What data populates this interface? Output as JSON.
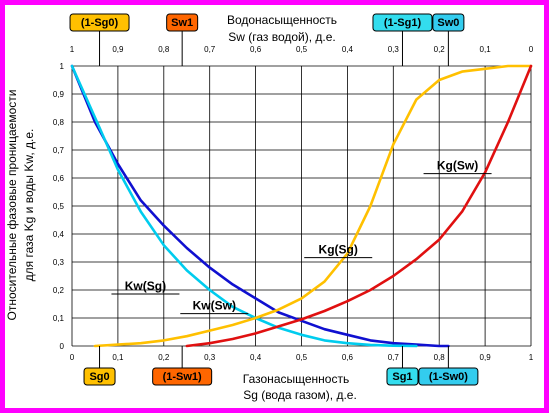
{
  "chart_data": {
    "type": "line",
    "title_top": "Водонасыщенность",
    "xlabel_top": "Sw (газ водой), д.е.",
    "title_bottom": "Газонасыщенность",
    "xlabel_bottom": "Sg (вода газом), д.е.",
    "ylabel_line1": "Относительные фазовые проницаемости",
    "ylabel_line2": "для газа Kg и воды Kw, д.е.",
    "xlim": [
      0,
      1
    ],
    "ylim": [
      0,
      1
    ],
    "grid": true,
    "x_ticks_bottom": [
      "0",
      "0,1",
      "0,2",
      "0,3",
      "0,4",
      "0,5",
      "0,6",
      "0,7",
      "0,8",
      "0,9",
      "1"
    ],
    "x_ticks_top": [
      "1",
      "0,9",
      "0,8",
      "0,7",
      "0,6",
      "0,5",
      "0,4",
      "0,3",
      "0,2",
      "0,1",
      "0"
    ],
    "y_ticks": [
      "0",
      "0,1",
      "0,2",
      "0,3",
      "0,4",
      "0,5",
      "0,6",
      "0,7",
      "0,8",
      "0,9",
      "1"
    ],
    "series": [
      {
        "name": "Kw(Sw)",
        "color": "#1010d0",
        "style": "solid-dashed",
        "x": [
          0,
          0.05,
          0.1,
          0.15,
          0.2,
          0.25,
          0.3,
          0.35,
          0.4,
          0.45,
          0.5,
          0.55,
          0.6,
          0.65,
          0.7,
          0.75,
          0.8,
          0.82
        ],
        "y": [
          1.0,
          0.8,
          0.65,
          0.52,
          0.43,
          0.35,
          0.28,
          0.22,
          0.17,
          0.12,
          0.09,
          0.06,
          0.04,
          0.02,
          0.01,
          0.005,
          0.0,
          0.0
        ]
      },
      {
        "name": "Kw(Sg)",
        "color": "#00ccee",
        "style": "solid-dashed",
        "x": [
          0,
          0.06,
          0.1,
          0.15,
          0.2,
          0.25,
          0.3,
          0.35,
          0.4,
          0.45,
          0.5,
          0.55,
          0.6,
          0.65,
          0.7,
          0.75
        ],
        "y": [
          1.0,
          0.78,
          0.63,
          0.48,
          0.36,
          0.27,
          0.2,
          0.14,
          0.1,
          0.065,
          0.04,
          0.02,
          0.01,
          0.004,
          0.001,
          0.0
        ]
      },
      {
        "name": "Kg(Sg)",
        "color": "#ffc000",
        "style": "solid-dashed",
        "x": [
          0.05,
          0.1,
          0.15,
          0.2,
          0.25,
          0.3,
          0.35,
          0.4,
          0.45,
          0.5,
          0.55,
          0.6,
          0.65,
          0.7,
          0.75,
          0.8,
          0.85,
          0.9,
          0.95,
          1.0
        ],
        "y": [
          0.0,
          0.005,
          0.01,
          0.02,
          0.035,
          0.055,
          0.075,
          0.1,
          0.13,
          0.17,
          0.23,
          0.33,
          0.5,
          0.72,
          0.88,
          0.95,
          0.98,
          0.99,
          1.0,
          1.0
        ]
      },
      {
        "name": "Kg(Sw)",
        "color": "#e01010",
        "style": "solid-dashed",
        "x": [
          0.25,
          0.3,
          0.35,
          0.4,
          0.45,
          0.5,
          0.55,
          0.6,
          0.65,
          0.7,
          0.75,
          0.8,
          0.85,
          0.9,
          0.95,
          1.0
        ],
        "y": [
          0.0,
          0.01,
          0.025,
          0.045,
          0.07,
          0.095,
          0.125,
          0.16,
          0.2,
          0.25,
          0.31,
          0.38,
          0.48,
          0.62,
          0.8,
          1.0
        ]
      }
    ],
    "curve_labels": [
      {
        "text": "Kw(Sg)"
      },
      {
        "text": "Kw(Sw)"
      },
      {
        "text": "Kg(Sg)"
      },
      {
        "text": "Kg(Sw)"
      }
    ],
    "top_callouts": [
      {
        "text": "(1-Sg0)",
        "color": "#ffc000",
        "at": 0.06
      },
      {
        "text": "Sw1",
        "color": "#ff6600",
        "at": 0.24
      },
      {
        "text": "(1-Sg1)",
        "color": "#33ddee",
        "at": 0.72
      },
      {
        "text": "Sw0",
        "color": "#33ccee",
        "at": 0.82
      }
    ],
    "bottom_callouts": [
      {
        "text": "Sg0",
        "color": "#ffc000",
        "at": 0.06
      },
      {
        "text": "(1-Sw1)",
        "color": "#ff6600",
        "at": 0.24
      },
      {
        "text": "Sg1",
        "color": "#33ddee",
        "at": 0.72
      },
      {
        "text": "(1-Sw0)",
        "color": "#33ccee",
        "at": 0.82
      }
    ]
  }
}
